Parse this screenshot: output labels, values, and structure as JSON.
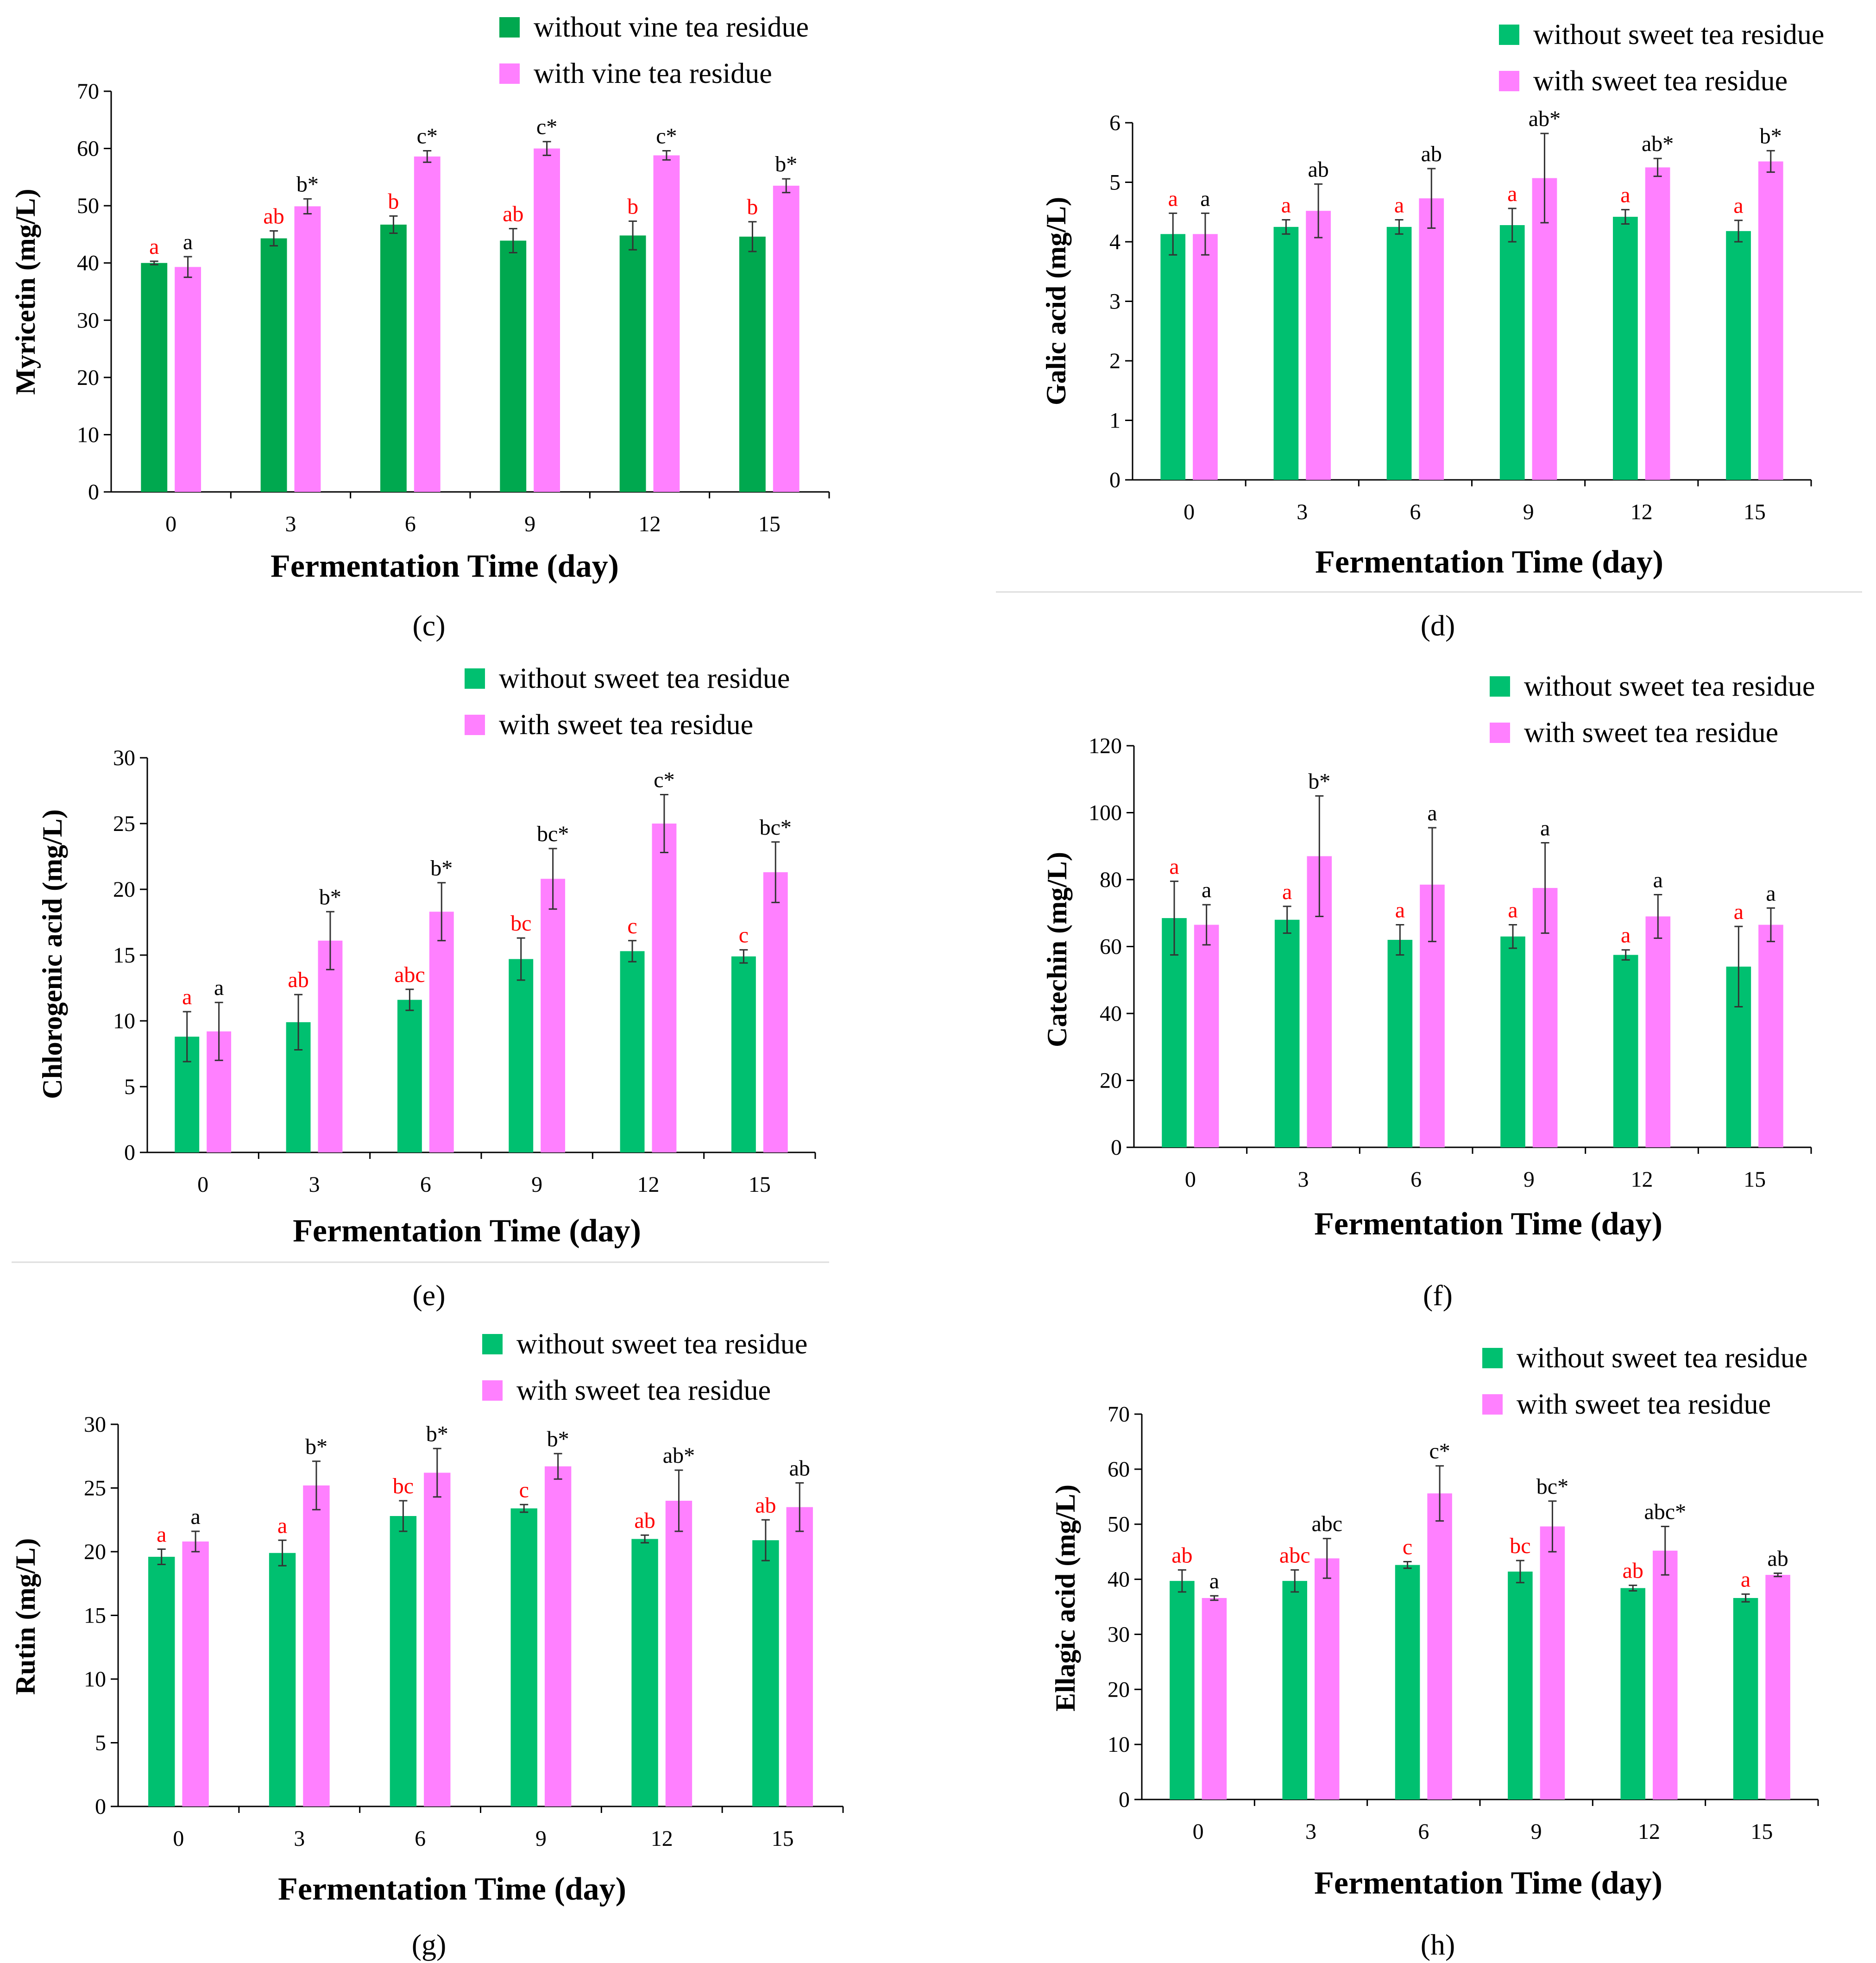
{
  "figure": {
    "type": "multi-panel grouped bar chart"
  },
  "colors": {
    "green": "#00b050",
    "pink": "#ff80ff",
    "sig_red": "#ff0000",
    "sig_black": "#000000",
    "axis": "#000000",
    "divider": "#dddddd"
  },
  "chart_data": [
    {
      "panel": "c",
      "caption_text": "(c)",
      "type": "bar",
      "title": "",
      "xlabel": "Fermentation Time (day)",
      "ylabel": "Myricetin (mg/L)",
      "categories": [
        "0",
        "3",
        "6",
        "9",
        "12",
        "15"
      ],
      "ylim": [
        0,
        70
      ],
      "yticks": [
        "0",
        "10",
        "20",
        "30",
        "40",
        "50",
        "60",
        "70"
      ],
      "legend_position": "top",
      "series": [
        {
          "name": "without vine tea residue",
          "color": "#00a84f",
          "values": [
            40.0,
            44.3,
            46.7,
            43.9,
            44.8,
            44.6
          ],
          "errors": [
            0.3,
            1.3,
            1.5,
            2.1,
            2.5,
            2.6
          ],
          "labels": [
            "a",
            "ab",
            "b",
            "ab",
            "b",
            "b"
          ]
        },
        {
          "name": "with vine tea residue",
          "color": "#ff80ff",
          "values": [
            39.3,
            49.9,
            58.6,
            60.0,
            58.8,
            53.5
          ],
          "errors": [
            1.8,
            1.3,
            1.0,
            1.2,
            0.8,
            1.2
          ],
          "labels": [
            "a",
            "b*",
            "c*",
            "c*",
            "c*",
            "b*"
          ]
        }
      ]
    },
    {
      "panel": "d",
      "caption_text": "(d)",
      "type": "bar",
      "title": "",
      "xlabel": "Fermentation Time (day)",
      "ylabel": "Galic acid (mg/L)",
      "categories": [
        "0",
        "3",
        "6",
        "9",
        "12",
        "15"
      ],
      "ylim": [
        0,
        6
      ],
      "yticks": [
        "0",
        "1",
        "2",
        "3",
        "4",
        "5",
        "6"
      ],
      "legend_position": "top-right",
      "series": [
        {
          "name": "without sweet tea residue",
          "color": "#00c070",
          "values": [
            4.13,
            4.25,
            4.25,
            4.28,
            4.42,
            4.18
          ],
          "errors": [
            0.35,
            0.12,
            0.12,
            0.28,
            0.12,
            0.18
          ],
          "labels": [
            "a",
            "a",
            "a",
            "a",
            "a",
            "a"
          ]
        },
        {
          "name": "with sweet tea residue",
          "color": "#ff80ff",
          "values": [
            4.13,
            4.52,
            4.73,
            5.07,
            5.25,
            5.35
          ],
          "errors": [
            0.35,
            0.45,
            0.5,
            0.75,
            0.15,
            0.18
          ],
          "labels": [
            "a",
            "ab",
            "ab",
            "ab*",
            "ab*",
            "b*"
          ]
        }
      ]
    },
    {
      "panel": "e",
      "caption_text": "(e)",
      "type": "bar",
      "title": "",
      "xlabel": "Fermentation Time (day)",
      "ylabel": "Chlorogenic acid (mg/L)",
      "categories": [
        "0",
        "3",
        "6",
        "9",
        "12",
        "15"
      ],
      "ylim": [
        0,
        30
      ],
      "yticks": [
        "0",
        "5",
        "10",
        "15",
        "20",
        "25",
        "30"
      ],
      "legend_position": "top",
      "series": [
        {
          "name": "without sweet tea residue",
          "color": "#00c070",
          "values": [
            8.8,
            9.9,
            11.6,
            14.7,
            15.3,
            14.9
          ],
          "errors": [
            1.9,
            2.1,
            0.8,
            1.6,
            0.8,
            0.5
          ],
          "labels": [
            "a",
            "ab",
            "abc",
            "bc",
            "c",
            "c"
          ]
        },
        {
          "name": "with sweet tea residue",
          "color": "#ff80ff",
          "values": [
            9.2,
            16.1,
            18.3,
            20.8,
            25.0,
            21.3
          ],
          "errors": [
            2.2,
            2.2,
            2.2,
            2.3,
            2.2,
            2.3
          ],
          "labels": [
            "a",
            "b*",
            "b*",
            "bc*",
            "c*",
            "bc*"
          ]
        }
      ]
    },
    {
      "panel": "f",
      "caption_text": "(f)",
      "type": "bar",
      "title": "",
      "xlabel": "Fermentation Time (day)",
      "ylabel": "Catechin  (mg/L)",
      "categories": [
        "0",
        "3",
        "6",
        "9",
        "12",
        "15"
      ],
      "ylim": [
        0,
        120
      ],
      "yticks": [
        "0",
        "20",
        "40",
        "60",
        "80",
        "100",
        "120"
      ],
      "legend_position": "top-right",
      "series": [
        {
          "name": "without sweet tea residue",
          "color": "#00c070",
          "values": [
            68.5,
            68.0,
            62.0,
            63.0,
            57.5,
            54.0
          ],
          "errors": [
            11.0,
            4.0,
            4.5,
            3.5,
            1.5,
            12.0
          ],
          "labels": [
            "a",
            "a",
            "a",
            "a",
            "a",
            "a"
          ]
        },
        {
          "name": "with sweet tea residue",
          "color": "#ff80ff",
          "values": [
            66.5,
            87.0,
            78.5,
            77.5,
            69.0,
            66.5
          ],
          "errors": [
            6.0,
            18.0,
            17.0,
            13.5,
            6.5,
            5.0
          ],
          "labels": [
            "a",
            "b*",
            "a",
            "a",
            "a",
            "a"
          ]
        }
      ]
    },
    {
      "panel": "g",
      "caption_text": "(g)",
      "type": "bar",
      "title": "",
      "xlabel": "Fermentation Time (day)",
      "ylabel": "Rutin (mg/L)",
      "categories": [
        "0",
        "3",
        "6",
        "9",
        "12",
        "15"
      ],
      "ylim": [
        0,
        30
      ],
      "yticks": [
        "0",
        "5",
        "10",
        "15",
        "20",
        "25",
        "30"
      ],
      "legend_position": "top",
      "series": [
        {
          "name": "without sweet tea residue",
          "color": "#00c070",
          "values": [
            19.6,
            19.9,
            22.8,
            23.4,
            21.0,
            20.9
          ],
          "errors": [
            0.6,
            1.0,
            1.2,
            0.3,
            0.3,
            1.6
          ],
          "labels": [
            "a",
            "a",
            "bc",
            "c",
            "ab",
            "ab"
          ]
        },
        {
          "name": "with sweet tea residue",
          "color": "#ff80ff",
          "values": [
            20.8,
            25.2,
            26.2,
            26.7,
            24.0,
            23.5
          ],
          "errors": [
            0.8,
            1.9,
            1.9,
            1.0,
            2.4,
            1.9
          ],
          "labels": [
            "a",
            "b*",
            "b*",
            "b*",
            "ab*",
            "ab"
          ]
        }
      ]
    },
    {
      "panel": "h",
      "caption_text": "(h)",
      "type": "bar",
      "title": "",
      "xlabel": "Fermentation Time (day)",
      "ylabel": "Ellagic acid (mg/L)",
      "categories": [
        "0",
        "3",
        "6",
        "9",
        "12",
        "15"
      ],
      "ylim": [
        0,
        70
      ],
      "yticks": [
        "0",
        "10",
        "20",
        "30",
        "40",
        "50",
        "60",
        "70"
      ],
      "legend_position": "top-right",
      "series": [
        {
          "name": "without sweet tea residue",
          "color": "#00c070",
          "values": [
            39.7,
            39.7,
            42.6,
            41.4,
            38.4,
            36.6
          ],
          "errors": [
            2.0,
            2.0,
            0.6,
            2.0,
            0.5,
            0.7
          ],
          "labels": [
            "ab",
            "abc",
            "c",
            "bc",
            "ab",
            "a"
          ]
        },
        {
          "name": "with sweet tea residue",
          "color": "#ff80ff",
          "values": [
            36.6,
            43.8,
            55.6,
            49.6,
            45.2,
            40.8
          ],
          "errors": [
            0.4,
            3.6,
            5.0,
            4.6,
            4.4,
            0.3
          ],
          "labels": [
            "a",
            "abc",
            "c*",
            "bc*",
            "abc*",
            "ab"
          ]
        }
      ]
    }
  ]
}
